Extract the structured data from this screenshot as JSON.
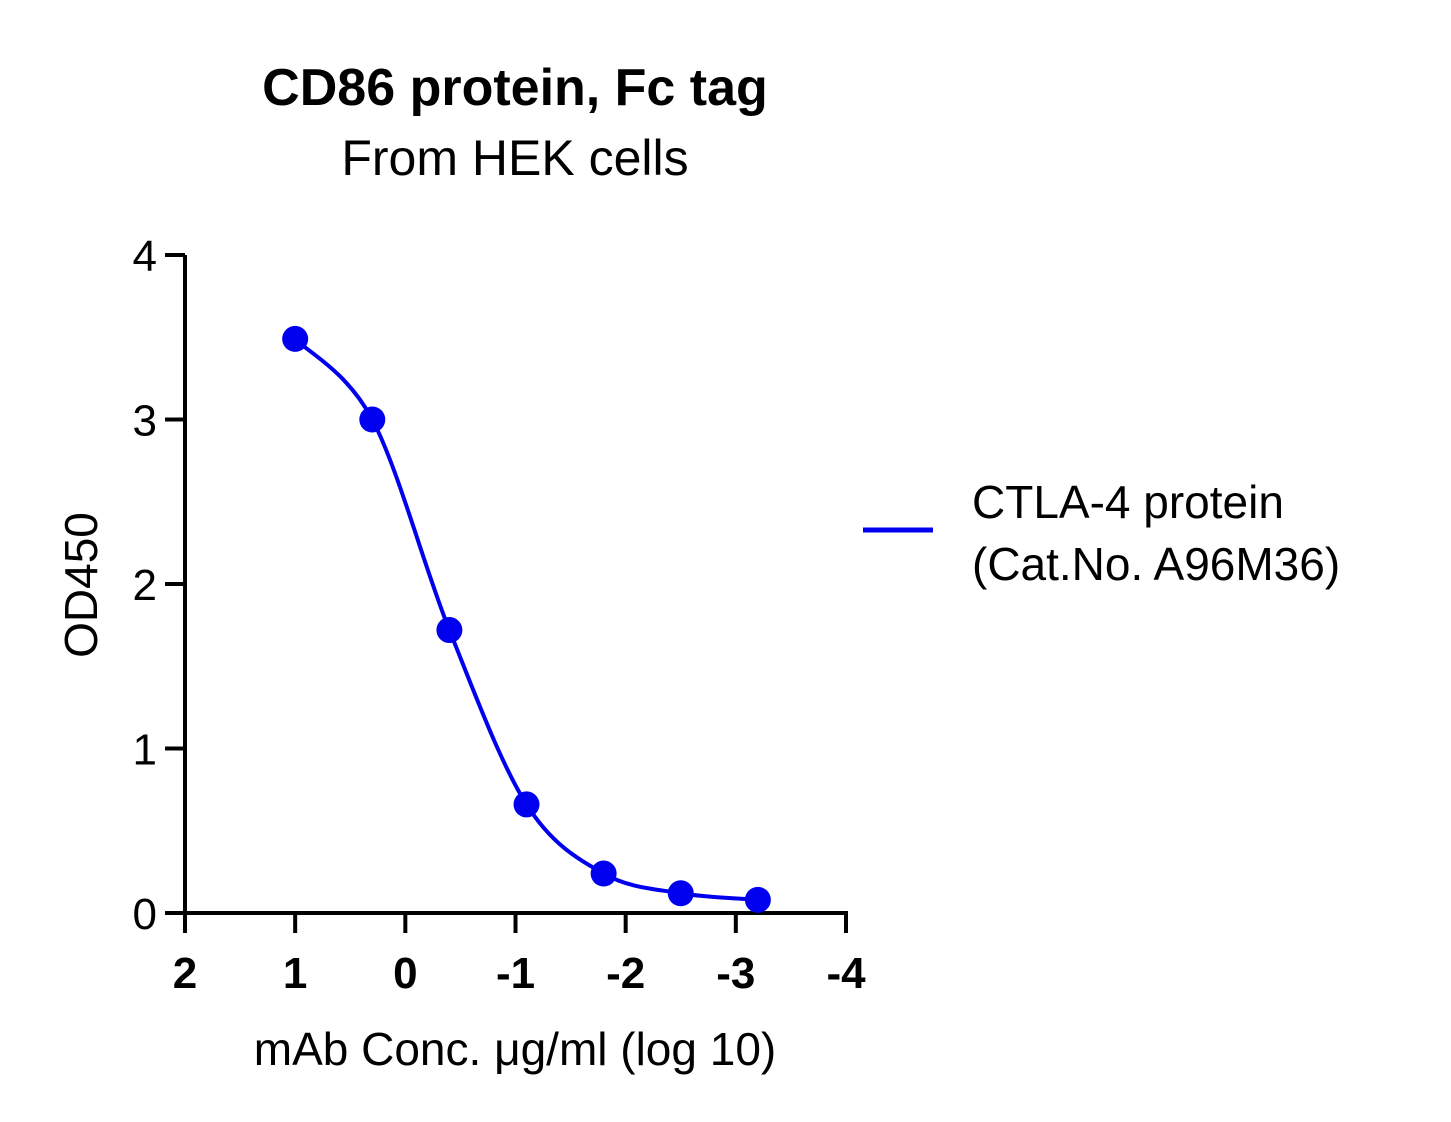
{
  "chart_data": {
    "type": "scatter",
    "title": "CD86 protein, Fc tag",
    "subtitle": "From HEK cells",
    "xlabel": "mAb Conc. μg/ml (log 10)",
    "ylabel": "OD450",
    "xlim": [
      2,
      -4
    ],
    "ylim": [
      0,
      4
    ],
    "x_ticks": [
      "2",
      "1",
      "0",
      "-1",
      "-2",
      "-3",
      "-4"
    ],
    "y_ticks": [
      "0",
      "1",
      "2",
      "3",
      "4"
    ],
    "legend_position": "right",
    "grid": false,
    "series": [
      {
        "name": "CTLA-4 protein\n(Cat.No. A96M36)",
        "legend_lines": [
          "CTLA-4 protein",
          "(Cat.No. A96M36)"
        ],
        "color": "#0000ee",
        "x": [
          1.0,
          0.3,
          -0.4,
          -1.1,
          -1.8,
          -2.5,
          -3.2
        ],
        "y": [
          3.49,
          3.0,
          1.72,
          0.66,
          0.24,
          0.12,
          0.08
        ],
        "fit": "sigmoidal"
      }
    ]
  }
}
